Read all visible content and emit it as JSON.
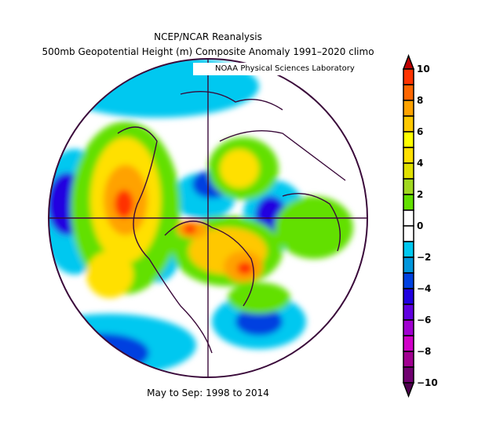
{
  "title": {
    "line1": "NCEP/NCAR Reanalysis",
    "line2": "500mb Geopotential Height (m) Composite Anomaly 1991–2020 climo"
  },
  "credit": "NOAA Physical Sciences Laboratory",
  "footer": "May to Sep: 1998 to 2014",
  "colorbar": {
    "min": -10,
    "max": 10,
    "step": 1,
    "labels": [
      "10",
      "8",
      "6",
      "4",
      "2",
      "0",
      "−2",
      "−4",
      "−6",
      "−8",
      "−10"
    ],
    "over_color": "#c00000",
    "under_color": "#500050",
    "colors_top_to_bottom": [
      "#ff3300",
      "#ff6600",
      "#ffa200",
      "#ffc800",
      "#ffff00",
      "#ffe000",
      "#e0e000",
      "#a0d820",
      "#62e000",
      "#ffffff",
      "#ffffff",
      "#00c8f0",
      "#0096dc",
      "#0040e0",
      "#2000e0",
      "#6000e0",
      "#a000d0",
      "#d000c8",
      "#a00090",
      "#700070"
    ]
  }
}
